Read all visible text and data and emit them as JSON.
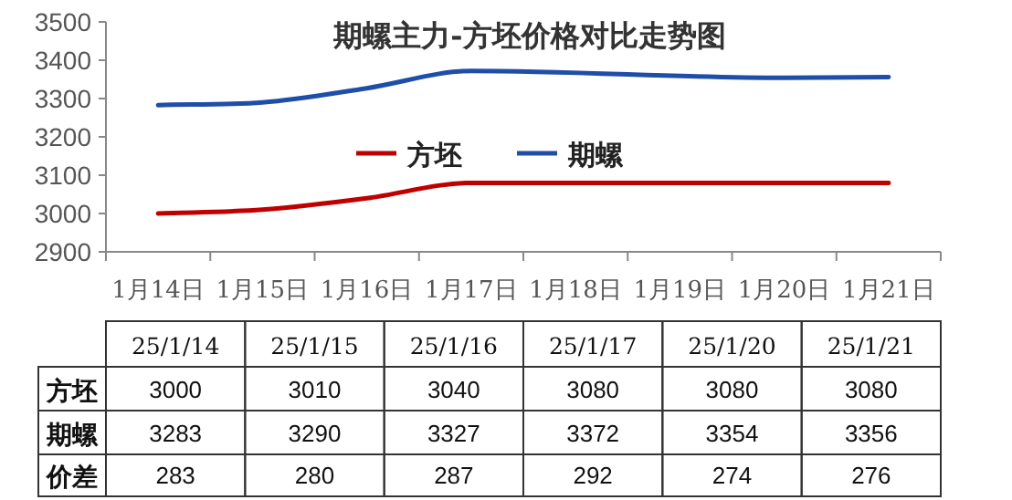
{
  "chart_data": {
    "type": "line",
    "title": "期螺主力-方坯价格对比走势图",
    "categories": [
      "1月14日",
      "1月15日",
      "1月16日",
      "1月17日",
      "1月18日",
      "1月19日",
      "1月20日",
      "1月21日"
    ],
    "series": [
      {
        "name": "方坯",
        "color": "#c00000",
        "values": [
          3000,
          3010,
          3040,
          3080,
          null,
          null,
          3080,
          3080
        ]
      },
      {
        "name": "期螺",
        "color": "#1f4ea8",
        "values": [
          3283,
          3290,
          3327,
          3372,
          null,
          null,
          3354,
          3356
        ]
      }
    ],
    "annotations": [
      "25/1/14",
      "25/1/15",
      "25/1/16",
      "25/1/17",
      "25/1/20",
      "25/1/21",
      "3000",
      "3010",
      "3040",
      "3080",
      "3080",
      "3080",
      "3283",
      "3290",
      "3327",
      "3372",
      "3354",
      "3356",
      "价差",
      "283",
      "280",
      "287",
      "292",
      "274",
      "276"
    ],
    "ylim": [
      2900,
      3500
    ],
    "yticks": [
      2900,
      3000,
      3100,
      3200,
      3300,
      3400,
      3500
    ],
    "legend": "center",
    "grid": false,
    "marker": "none",
    "line_style": "solid"
  }
}
